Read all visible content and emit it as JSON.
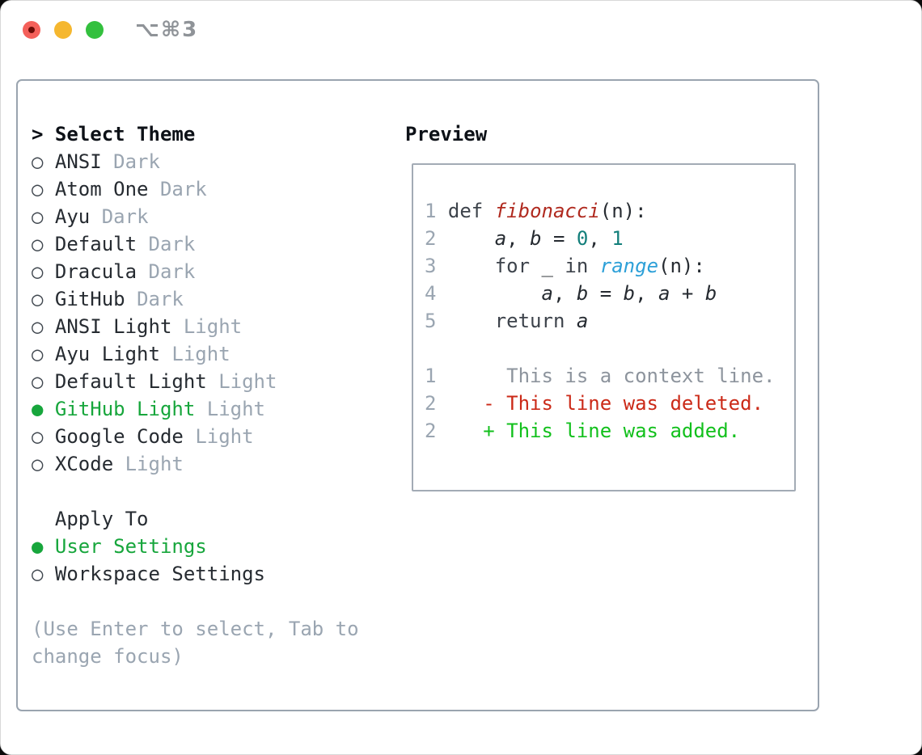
{
  "titlebar": {
    "shortcut_label": "⌥⌘3"
  },
  "theme_picker": {
    "title": "Select Theme",
    "caret": ">",
    "marker_unselected": "○",
    "marker_selected": "●",
    "items": [
      {
        "name": "ANSI",
        "variant": "Dark",
        "selected": false
      },
      {
        "name": "Atom One",
        "variant": "Dark",
        "selected": false
      },
      {
        "name": "Ayu",
        "variant": "Dark",
        "selected": false
      },
      {
        "name": "Default",
        "variant": "Dark",
        "selected": false
      },
      {
        "name": "Dracula",
        "variant": "Dark",
        "selected": false
      },
      {
        "name": "GitHub",
        "variant": "Dark",
        "selected": false
      },
      {
        "name": "ANSI Light",
        "variant": "Light",
        "selected": false
      },
      {
        "name": "Ayu Light",
        "variant": "Light",
        "selected": false
      },
      {
        "name": "Default Light",
        "variant": "Light",
        "selected": false
      },
      {
        "name": "GitHub Light",
        "variant": "Light",
        "selected": true
      },
      {
        "name": "Google Code",
        "variant": "Light",
        "selected": false
      },
      {
        "name": "XCode",
        "variant": "Light",
        "selected": false
      }
    ],
    "apply_to": {
      "title": "Apply To",
      "options": [
        {
          "label": "User Settings",
          "selected": true
        },
        {
          "label": "Workspace Settings",
          "selected": false
        }
      ]
    },
    "hint": "(Use Enter to select, Tab to change focus)"
  },
  "preview": {
    "title": "Preview",
    "code_lines": [
      {
        "kind": "code",
        "tokens": [
          [
            "num",
            "1"
          ],
          [
            "pl",
            " "
          ],
          [
            "kw",
            "def"
          ],
          [
            "pl",
            " "
          ],
          [
            "fn",
            "fibonacci"
          ],
          [
            "pl",
            "(n):"
          ]
        ]
      },
      {
        "kind": "code",
        "tokens": [
          [
            "num",
            "2"
          ],
          [
            "pl",
            "     "
          ],
          [
            "id",
            "a"
          ],
          [
            "pl",
            ", "
          ],
          [
            "id",
            "b"
          ],
          [
            "pl",
            " = "
          ],
          [
            "nm",
            "0"
          ],
          [
            "pl",
            ", "
          ],
          [
            "nm",
            "1"
          ]
        ]
      },
      {
        "kind": "code",
        "tokens": [
          [
            "num",
            "3"
          ],
          [
            "pl",
            "     "
          ],
          [
            "kw",
            "for"
          ],
          [
            "pl",
            " _ "
          ],
          [
            "kw",
            "in"
          ],
          [
            "pl",
            " "
          ],
          [
            "bi",
            "range"
          ],
          [
            "pl",
            "(n):"
          ]
        ]
      },
      {
        "kind": "code",
        "tokens": [
          [
            "num",
            "4"
          ],
          [
            "pl",
            "         "
          ],
          [
            "id",
            "a"
          ],
          [
            "pl",
            ", "
          ],
          [
            "id",
            "b"
          ],
          [
            "pl",
            " = "
          ],
          [
            "id",
            "b"
          ],
          [
            "pl",
            ", "
          ],
          [
            "id",
            "a"
          ],
          [
            "pl",
            " + "
          ],
          [
            "id",
            "b"
          ]
        ]
      },
      {
        "kind": "code",
        "tokens": [
          [
            "num",
            "5"
          ],
          [
            "pl",
            "     "
          ],
          [
            "kw",
            "return"
          ],
          [
            "pl",
            " "
          ],
          [
            "id",
            "a"
          ]
        ]
      },
      {
        "kind": "blank",
        "tokens": []
      },
      {
        "kind": "diff-context",
        "tokens": [
          [
            "num",
            "1"
          ],
          [
            "ctx",
            "      This is a context line."
          ]
        ]
      },
      {
        "kind": "diff-deleted",
        "tokens": [
          [
            "num",
            "2"
          ],
          [
            "pl",
            "    "
          ],
          [
            "del",
            "- This line was deleted."
          ]
        ]
      },
      {
        "kind": "diff-added",
        "tokens": [
          [
            "num",
            "2"
          ],
          [
            "pl",
            "    "
          ],
          [
            "add",
            "+ This line was added."
          ]
        ]
      }
    ]
  },
  "colors": {
    "strong": "#0d1117",
    "text": "#262b31",
    "muted": "#9aa5b1",
    "marker": "#40474f",
    "green": "#17a63c",
    "keyword": "#3d434b",
    "func": "#b02a1f",
    "number": "#137f7b",
    "builtin": "#2da0d8",
    "context": "#8d949d",
    "deleted": "#cb2a18",
    "added": "#12c01c",
    "linenum": "#9aa5b1",
    "border": "#9aa4af",
    "cborder": "#a3abb5",
    "tred": "#f4605a",
    "treddot": "#6b0b06",
    "tyellow": "#f5b72f",
    "tgreen": "#33c03e",
    "shortcut": "#8f9398"
  }
}
